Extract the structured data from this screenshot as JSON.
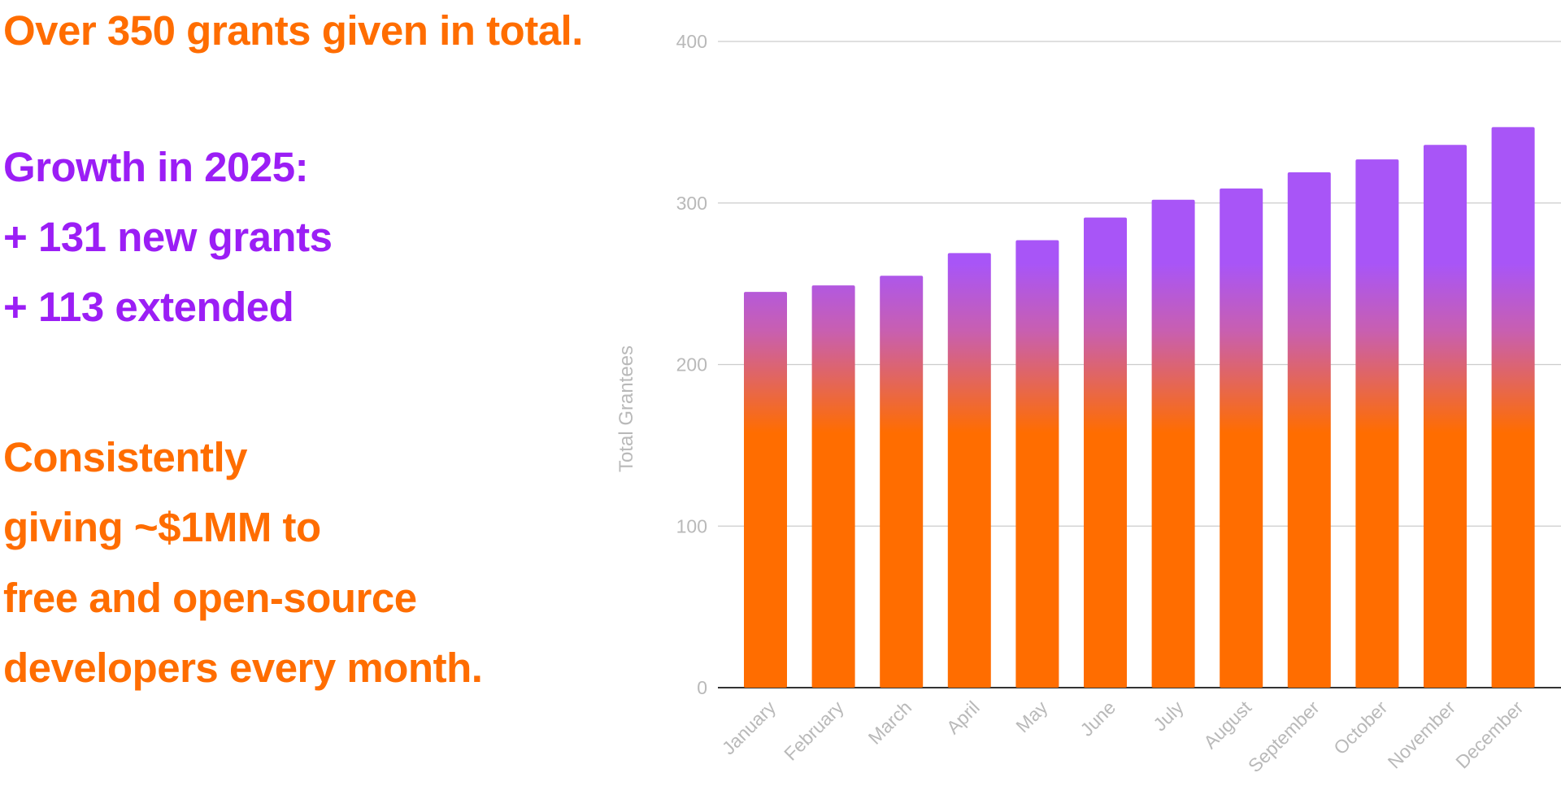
{
  "text": {
    "total_line": "Over 350 grants given in total.",
    "growth_heading": "Growth in 2025:",
    "new_grants": "+ 131 new grants",
    "extended": "+ 113 extended",
    "consistently_lines": [
      "Consistently",
      "giving ~$1MM to",
      "free and open-source",
      "developers every month."
    ]
  },
  "colors": {
    "orange": "#ff6d00",
    "purple": "#9b1ef5",
    "bar_top": "#a855f7",
    "bar_bottom": "#ff6d00",
    "gridline": "#cccccc",
    "baseline": "#333333",
    "axis_text": "#b9b9b9"
  },
  "chart_data": {
    "type": "bar",
    "categories": [
      "January",
      "February",
      "March",
      "April",
      "May",
      "June",
      "July",
      "August",
      "September",
      "October",
      "November",
      "December"
    ],
    "values": [
      245,
      249,
      255,
      269,
      277,
      291,
      302,
      309,
      319,
      327,
      336,
      347
    ],
    "title": "",
    "xlabel": "",
    "ylabel": "Total Grantees",
    "ylim": [
      0,
      400
    ],
    "yticks": [
      0,
      100,
      200,
      300,
      400
    ],
    "grid": true,
    "legend": "none"
  }
}
